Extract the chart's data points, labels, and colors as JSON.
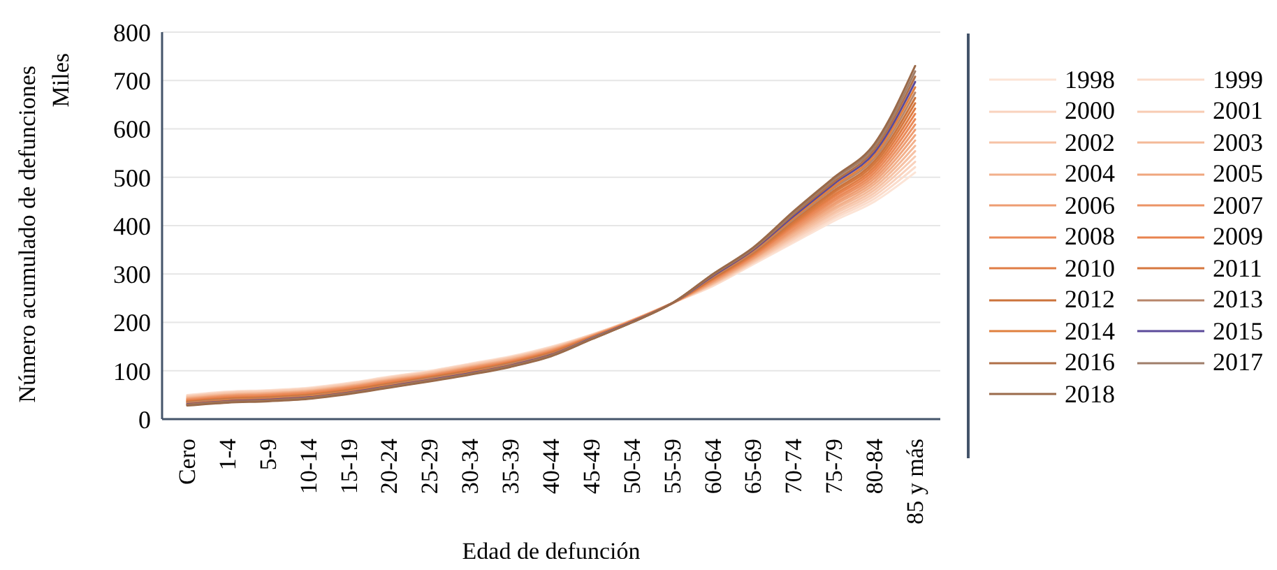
{
  "chart_data": {
    "type": "line",
    "xlabel": "Edad de defunción",
    "ylabel": "Número acumulado de defunciones",
    "annotations": [
      "Miles"
    ],
    "categories": [
      "Cero",
      "1-4",
      "5-9",
      "10-14",
      "15-19",
      "20-24",
      "25-29",
      "30-34",
      "35-39",
      "40-44",
      "45-49",
      "50-54",
      "55-59",
      "60-64",
      "65-69",
      "70-74",
      "75-79",
      "80-84",
      "85 y más"
    ],
    "ylim": [
      0,
      800
    ],
    "yticks": [
      0,
      100,
      200,
      300,
      400,
      500,
      600,
      700,
      800
    ],
    "grid": "y",
    "legend": "right",
    "marker": "none",
    "line_style": "solid",
    "series": [
      {
        "name": "1998",
        "color": "#fce4d6",
        "values": [
          50,
          57,
          60,
          65,
          75,
          88,
          100,
          115,
          130,
          150,
          175,
          205,
          240,
          275,
          320,
          365,
          410,
          450,
          510
        ]
      },
      {
        "name": "1999",
        "color": "#fbdccb",
        "values": [
          49,
          56,
          59,
          64,
          74,
          87,
          99,
          114,
          129,
          149,
          175,
          205,
          240,
          276,
          322,
          368,
          415,
          456,
          521
        ]
      },
      {
        "name": "2000",
        "color": "#f9d2bd",
        "values": [
          48,
          55,
          58,
          63,
          73,
          86,
          98,
          113,
          128,
          148,
          174,
          205,
          240,
          278,
          324,
          372,
          419,
          462,
          532
        ]
      },
      {
        "name": "2001",
        "color": "#f8cbb2",
        "values": [
          46,
          54,
          57,
          62,
          72,
          85,
          97,
          112,
          127,
          147,
          174,
          204,
          240,
          279,
          325,
          375,
          424,
          468,
          543
        ]
      },
      {
        "name": "2002",
        "color": "#f6c2a5",
        "values": [
          46,
          52,
          55,
          60,
          70,
          83,
          96,
          110,
          126,
          146,
          173,
          204,
          240,
          280,
          327,
          378,
          428,
          474,
          554
        ]
      },
      {
        "name": "2003",
        "color": "#f4b998",
        "values": [
          44,
          51,
          54,
          59,
          69,
          82,
          94,
          109,
          124,
          145,
          173,
          204,
          240,
          281,
          329,
          381,
          433,
          480,
          565
        ]
      },
      {
        "name": "2004",
        "color": "#f2b08b",
        "values": [
          43,
          50,
          53,
          58,
          68,
          81,
          93,
          108,
          123,
          144,
          172,
          204,
          240,
          282,
          331,
          385,
          437,
          486,
          576
        ]
      },
      {
        "name": "2005",
        "color": "#f0a67e",
        "values": [
          42,
          49,
          52,
          57,
          67,
          80,
          92,
          107,
          122,
          143,
          172,
          203,
          240,
          284,
          332,
          388,
          442,
          492,
          587
        ]
      },
      {
        "name": "2006",
        "color": "#ee9d72",
        "values": [
          41,
          48,
          51,
          56,
          66,
          79,
          91,
          106,
          121,
          142,
          171,
          203,
          240,
          285,
          334,
          391,
          446,
          498,
          598
        ]
      },
      {
        "name": "2007",
        "color": "#ec9466",
        "values": [
          40,
          47,
          50,
          55,
          65,
          78,
          90,
          105,
          120,
          141,
          171,
          203,
          240,
          286,
          336,
          394,
          451,
          504,
          609
        ]
      },
      {
        "name": "2008",
        "color": "#ea8b5a",
        "values": [
          39,
          46,
          49,
          54,
          64,
          77,
          89,
          104,
          119,
          140,
          170,
          203,
          240,
          288,
          338,
          398,
          455,
          510,
          620
        ]
      },
      {
        "name": "2009",
        "color": "#e8834f",
        "values": [
          38,
          44,
          47,
          52,
          62,
          75,
          88,
          102,
          118,
          139,
          170,
          202,
          240,
          289,
          339,
          401,
          460,
          516,
          631
        ]
      },
      {
        "name": "2010",
        "color": "#e07d45",
        "values": [
          37,
          43,
          46,
          51,
          61,
          74,
          87,
          101,
          117,
          138,
          169,
          202,
          240,
          290,
          341,
          404,
          464,
          522,
          642
        ]
      },
      {
        "name": "2011",
        "color": "#d6783f",
        "values": [
          36,
          42,
          45,
          50,
          60,
          73,
          86,
          100,
          116,
          137,
          169,
          202,
          240,
          291,
          343,
          407,
          469,
          528,
          653
        ]
      },
      {
        "name": "2012",
        "color": "#cc733b",
        "values": [
          35,
          41,
          44,
          49,
          59,
          72,
          85,
          99,
          115,
          136,
          168,
          201,
          240,
          292,
          345,
          411,
          473,
          534,
          664
        ]
      },
      {
        "name": "2013",
        "color": "#b8866a",
        "values": [
          34,
          40,
          43,
          48,
          58,
          71,
          84,
          98,
          114,
          135,
          168,
          201,
          240,
          294,
          346,
          414,
          478,
          540,
          675
        ]
      },
      {
        "name": "2014",
        "color": "#e0803e",
        "values": [
          32,
          39,
          42,
          47,
          57,
          70,
          82,
          97,
          112,
          134,
          167,
          201,
          240,
          295,
          348,
          417,
          482,
          546,
          686
        ]
      },
      {
        "name": "2015",
        "color": "#5b4a9a",
        "values": [
          31,
          37,
          40,
          45,
          55,
          68,
          81,
          95,
          111,
          133,
          167,
          201,
          240,
          296,
          350,
          420,
          487,
          552,
          697
        ]
      },
      {
        "name": "2016",
        "color": "#b07048",
        "values": [
          30,
          36,
          39,
          44,
          54,
          67,
          80,
          94,
          110,
          132,
          166,
          200,
          240,
          298,
          352,
          424,
          491,
          558,
          708
        ]
      },
      {
        "name": "2017",
        "color": "#a07e6a",
        "values": [
          29,
          35,
          38,
          43,
          53,
          66,
          79,
          93,
          109,
          131,
          166,
          200,
          240,
          299,
          353,
          427,
          496,
          564,
          719
        ]
      },
      {
        "name": "2018",
        "color": "#9a6a4a",
        "values": [
          28,
          34,
          37,
          42,
          52,
          65,
          78,
          92,
          108,
          130,
          165,
          200,
          240,
          300,
          355,
          430,
          500,
          570,
          730
        ]
      }
    ]
  }
}
